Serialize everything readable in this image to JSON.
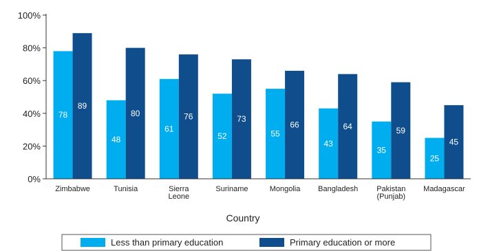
{
  "chart_data": {
    "type": "bar",
    "categories": [
      [
        "Zimbabwe"
      ],
      [
        "Tunisia"
      ],
      [
        "Sierra",
        "Leone"
      ],
      [
        "Suriname"
      ],
      [
        "Mongolia"
      ],
      [
        "Bangladesh"
      ],
      [
        "Pakistan",
        "(Punjab)"
      ],
      [
        "Madagascar"
      ]
    ],
    "series": [
      {
        "name": "Less than primary education",
        "color": "#00adef",
        "values": [
          78,
          48,
          61,
          52,
          55,
          43,
          35,
          25
        ]
      },
      {
        "name": "Primary education or more",
        "color": "#0f4d8c",
        "values": [
          89,
          80,
          76,
          73,
          66,
          64,
          59,
          45
        ]
      }
    ],
    "xlabel": "Country",
    "ylabel": "",
    "ylim": [
      0,
      100
    ],
    "yticks": [
      "0%",
      "20%",
      "40%",
      "60%",
      "80%",
      "100%"
    ],
    "ytick_values": [
      0,
      20,
      40,
      60,
      80,
      100
    ],
    "legend_position": "bottom",
    "grid": false
  }
}
